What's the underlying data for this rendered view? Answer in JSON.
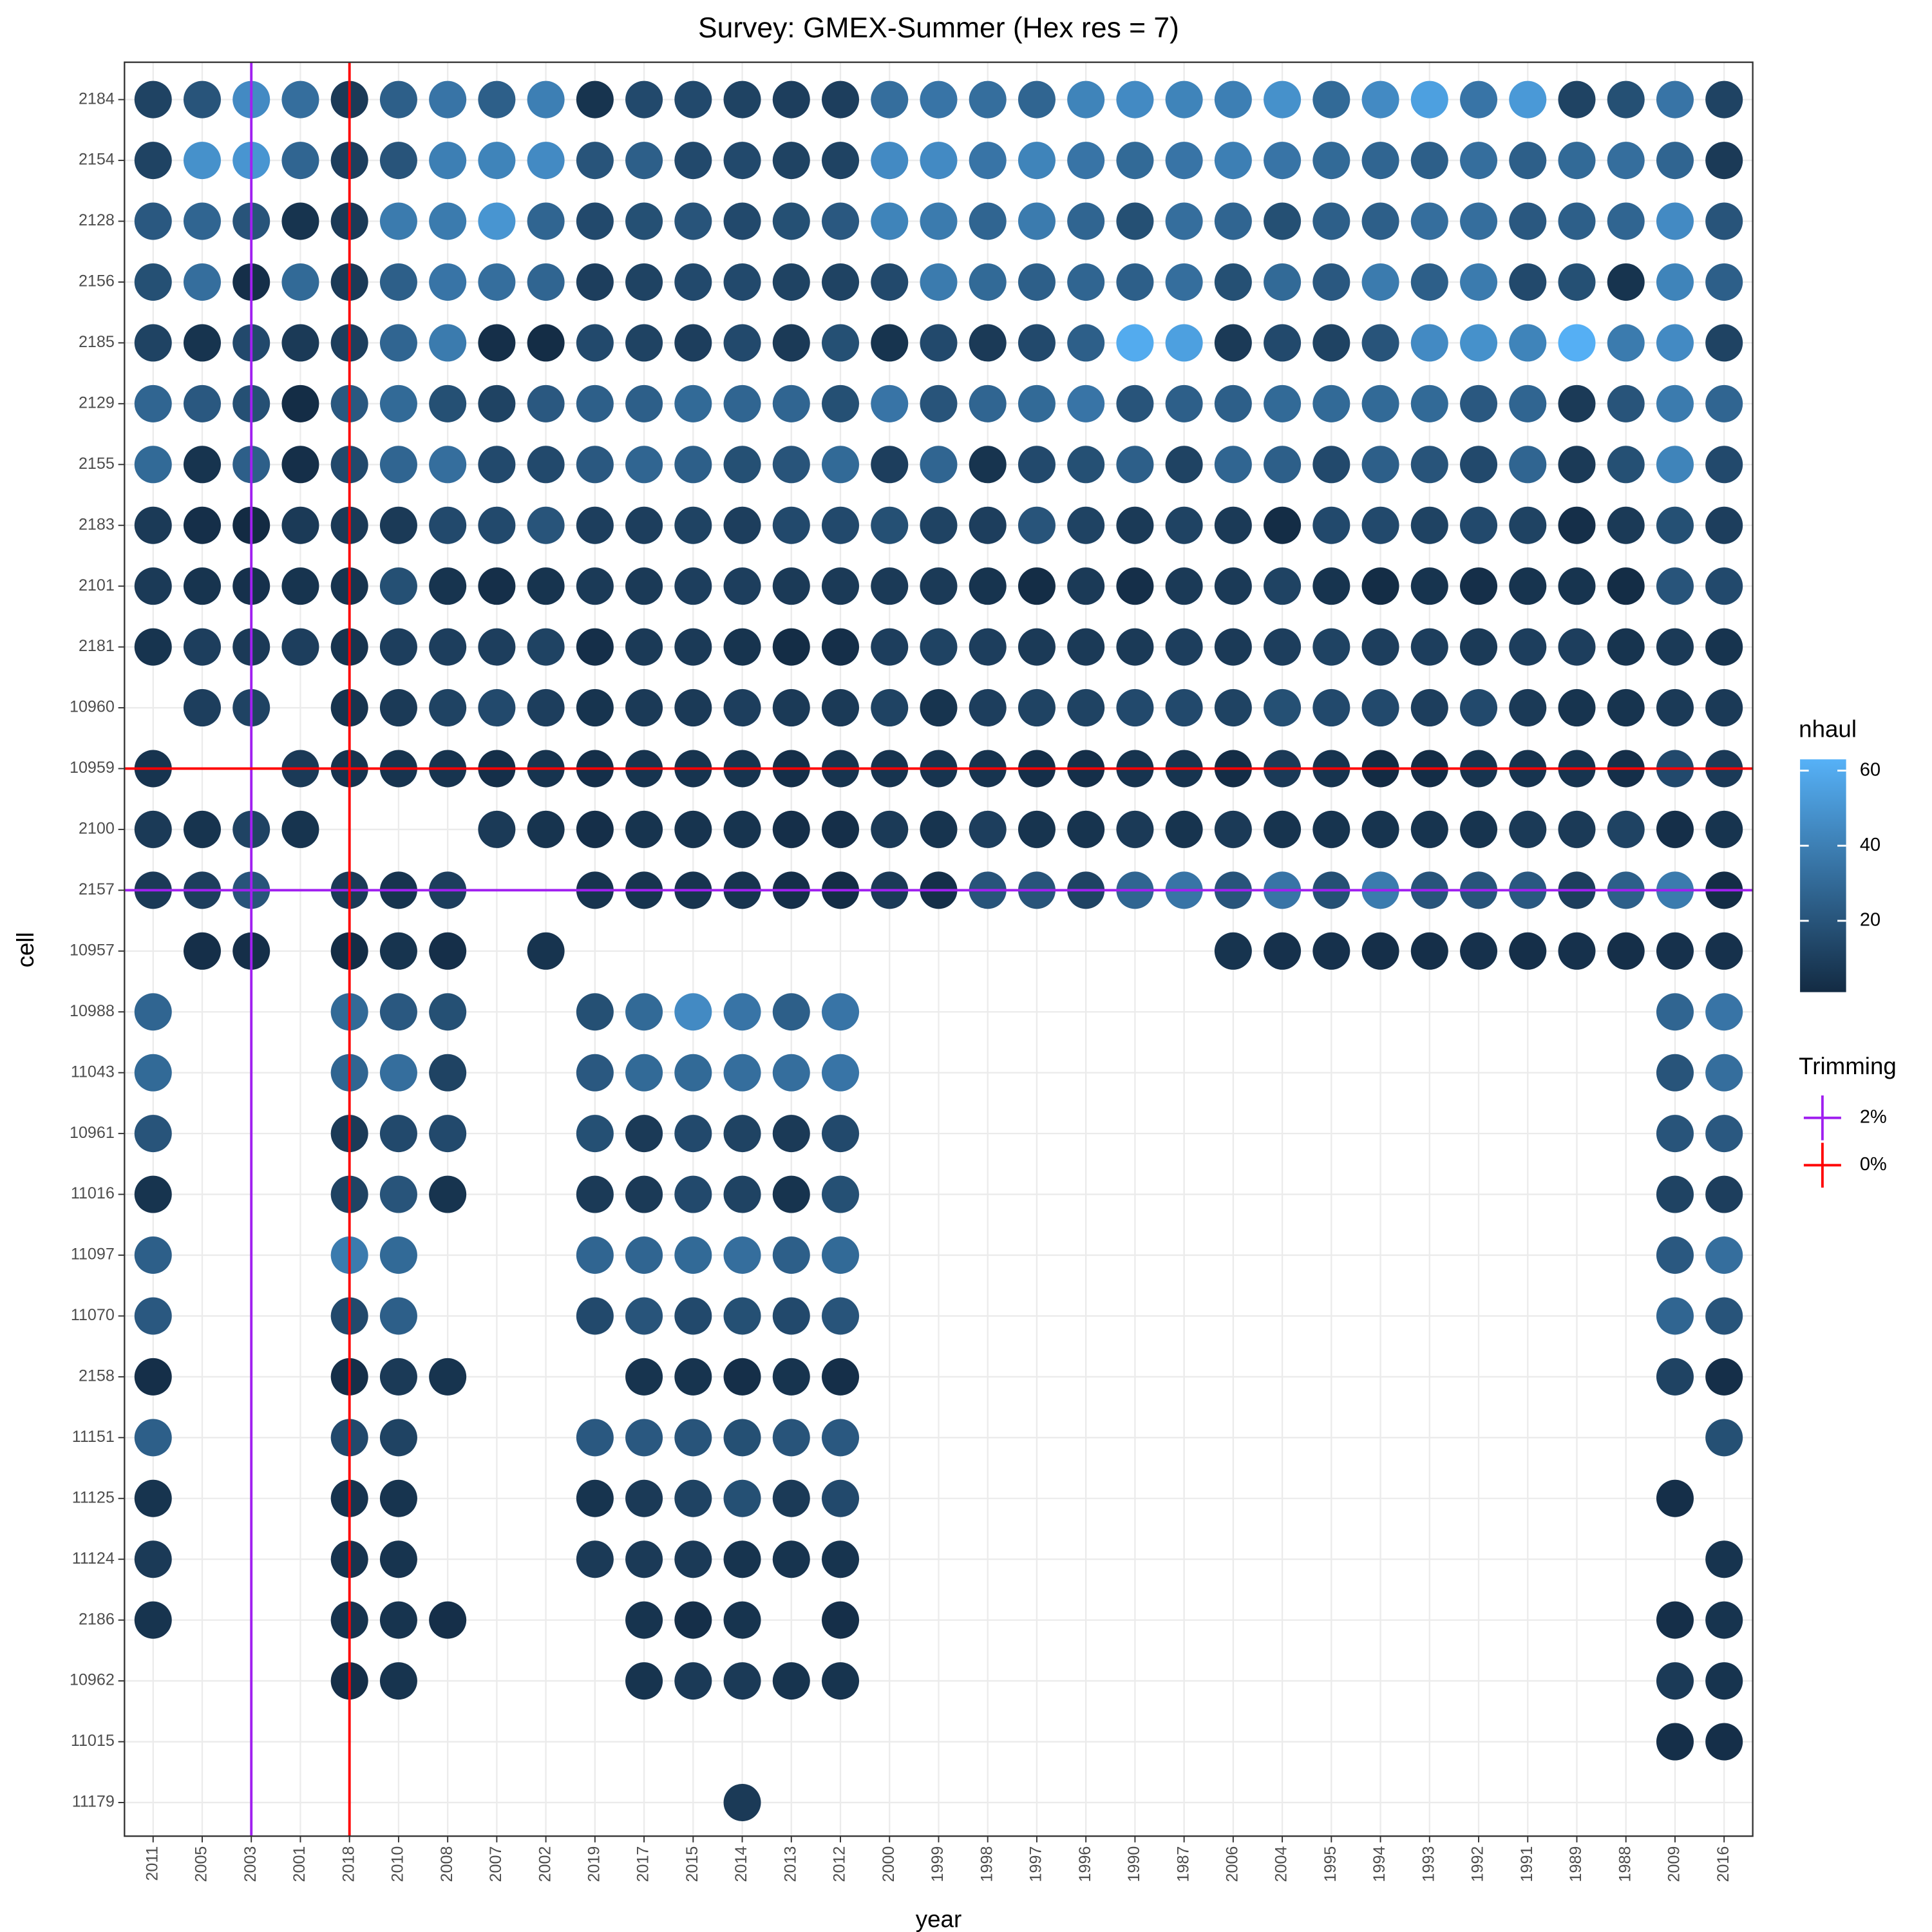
{
  "chart_data": {
    "type": "dotgrid",
    "title": "Survey: GMEX-Summer (Hex res = 7)",
    "x_label": "year",
    "y_label": "cell",
    "categories": [
      "2011",
      "2005",
      "2003",
      "2001",
      "2018",
      "2010",
      "2008",
      "2007",
      "2002",
      "2019",
      "2017",
      "2015",
      "2014",
      "2013",
      "2012",
      "2000",
      "1999",
      "1998",
      "1997",
      "1996",
      "1990",
      "1987",
      "2006",
      "2004",
      "1995",
      "1994",
      "1993",
      "1992",
      "1991",
      "1989",
      "1988",
      "2009",
      "2016"
    ],
    "y_categories": [
      "2184",
      "2154",
      "2128",
      "2156",
      "2185",
      "2129",
      "2155",
      "2183",
      "2101",
      "2181",
      "10960",
      "10959",
      "2100",
      "2157",
      "10957",
      "10988",
      "11043",
      "10961",
      "11016",
      "11097",
      "11070",
      "2158",
      "11151",
      "11125",
      "11124",
      "2186",
      "10962",
      "11015",
      "11179"
    ],
    "values": [
      [
        12,
        20,
        45,
        32,
        8,
        25,
        35,
        25,
        40,
        5,
        15,
        15,
        12,
        10,
        10,
        32,
        35,
        32,
        28,
        42,
        45,
        42,
        40,
        48,
        30,
        45,
        55,
        35,
        52,
        12,
        18,
        35,
        12
      ],
      [
        12,
        48,
        50,
        28,
        10,
        20,
        40,
        42,
        45,
        20,
        25,
        15,
        15,
        12,
        12,
        45,
        45,
        35,
        42,
        35,
        30,
        35,
        40,
        35,
        30,
        28,
        25,
        32,
        25,
        30,
        32,
        28,
        8
      ],
      [
        22,
        28,
        20,
        5,
        8,
        38,
        38,
        50,
        28,
        15,
        18,
        20,
        15,
        18,
        22,
        42,
        38,
        28,
        38,
        28,
        18,
        32,
        28,
        18,
        25,
        25,
        32,
        32,
        22,
        25,
        28,
        45,
        20
      ],
      [
        18,
        32,
        3,
        30,
        8,
        25,
        35,
        32,
        28,
        10,
        12,
        15,
        15,
        12,
        12,
        15,
        38,
        30,
        25,
        28,
        25,
        32,
        18,
        30,
        22,
        38,
        25,
        38,
        15,
        18,
        5,
        42,
        25
      ],
      [
        12,
        5,
        15,
        8,
        10,
        28,
        38,
        3,
        2,
        15,
        12,
        10,
        15,
        8,
        18,
        5,
        15,
        8,
        15,
        25,
        60,
        55,
        8,
        15,
        12,
        20,
        45,
        48,
        42,
        62,
        38,
        45,
        12
      ],
      [
        28,
        22,
        18,
        2,
        22,
        30,
        18,
        12,
        22,
        25,
        25,
        30,
        28,
        28,
        18,
        35,
        20,
        28,
        30,
        35,
        20,
        25,
        25,
        30,
        30,
        30,
        30,
        22,
        28,
        8,
        20,
        38,
        28
      ],
      [
        30,
        5,
        25,
        3,
        15,
        28,
        32,
        15,
        15,
        22,
        28,
        25,
        18,
        20,
        30,
        10,
        28,
        5,
        15,
        18,
        25,
        12,
        28,
        25,
        15,
        25,
        20,
        15,
        28,
        8,
        18,
        42,
        15
      ],
      [
        8,
        3,
        1,
        8,
        8,
        8,
        15,
        15,
        20,
        10,
        10,
        12,
        10,
        15,
        15,
        18,
        12,
        10,
        20,
        12,
        8,
        12,
        8,
        2,
        15,
        15,
        12,
        15,
        12,
        3,
        8,
        18,
        10
      ],
      [
        8,
        5,
        4,
        5,
        5,
        18,
        5,
        3,
        5,
        8,
        8,
        10,
        10,
        8,
        8,
        8,
        8,
        5,
        2,
        8,
        3,
        8,
        8,
        12,
        5,
        2,
        5,
        3,
        5,
        5,
        2,
        20,
        15
      ],
      [
        5,
        10,
        8,
        10,
        5,
        10,
        10,
        10,
        12,
        3,
        8,
        8,
        5,
        2,
        3,
        10,
        12,
        10,
        8,
        8,
        8,
        10,
        8,
        10,
        12,
        10,
        10,
        8,
        10,
        10,
        5,
        8,
        5
      ],
      [
        null,
        10,
        12,
        null,
        5,
        8,
        12,
        15,
        10,
        5,
        8,
        8,
        10,
        8,
        8,
        12,
        5,
        10,
        12,
        12,
        15,
        15,
        12,
        18,
        15,
        15,
        10,
        15,
        8,
        5,
        5,
        8,
        8
      ],
      [
        5,
        null,
        null,
        8,
        5,
        5,
        5,
        3,
        5,
        3,
        5,
        5,
        5,
        3,
        5,
        5,
        5,
        5,
        3,
        3,
        5,
        5,
        2,
        8,
        5,
        1,
        2,
        5,
        5,
        5,
        3,
        15,
        8
      ],
      [
        8,
        5,
        12,
        5,
        null,
        null,
        null,
        8,
        5,
        3,
        5,
        5,
        5,
        3,
        3,
        8,
        5,
        10,
        5,
        5,
        8,
        5,
        8,
        5,
        5,
        5,
        5,
        5,
        8,
        8,
        12,
        3,
        5
      ],
      [
        8,
        10,
        20,
        null,
        8,
        5,
        10,
        null,
        null,
        5,
        5,
        5,
        5,
        3,
        2,
        8,
        3,
        20,
        20,
        12,
        28,
        35,
        20,
        35,
        18,
        38,
        20,
        20,
        22,
        10,
        25,
        38,
        2
      ],
      [
        null,
        3,
        3,
        null,
        2,
        5,
        3,
        null,
        5,
        null,
        null,
        null,
        null,
        null,
        null,
        null,
        null,
        null,
        null,
        null,
        null,
        null,
        5,
        4,
        4,
        3,
        3,
        4,
        3,
        4,
        3,
        4,
        4
      ],
      [
        28,
        null,
        null,
        null,
        30,
        22,
        18,
        null,
        null,
        18,
        30,
        45,
        35,
        25,
        35,
        null,
        null,
        null,
        null,
        null,
        null,
        null,
        null,
        null,
        null,
        null,
        null,
        null,
        null,
        null,
        null,
        28,
        35
      ],
      [
        30,
        null,
        null,
        null,
        28,
        32,
        12,
        null,
        null,
        22,
        30,
        30,
        32,
        32,
        35,
        null,
        null,
        null,
        null,
        null,
        null,
        null,
        null,
        null,
        null,
        null,
        null,
        null,
        null,
        null,
        null,
        20,
        32
      ],
      [
        20,
        null,
        null,
        null,
        8,
        15,
        15,
        null,
        null,
        18,
        8,
        15,
        12,
        8,
        15,
        null,
        null,
        null,
        null,
        null,
        null,
        null,
        null,
        null,
        null,
        null,
        null,
        null,
        null,
        null,
        null,
        20,
        22
      ],
      [
        5,
        null,
        null,
        null,
        12,
        20,
        5,
        null,
        null,
        8,
        8,
        15,
        12,
        5,
        18,
        null,
        null,
        null,
        null,
        null,
        null,
        null,
        null,
        null,
        null,
        null,
        null,
        null,
        null,
        null,
        null,
        12,
        10
      ],
      [
        25,
        null,
        null,
        null,
        38,
        30,
        null,
        null,
        null,
        28,
        28,
        30,
        32,
        25,
        30,
        null,
        null,
        null,
        null,
        null,
        null,
        null,
        null,
        null,
        null,
        null,
        null,
        null,
        null,
        null,
        null,
        22,
        32
      ],
      [
        22,
        null,
        null,
        null,
        15,
        25,
        null,
        null,
        null,
        15,
        20,
        15,
        18,
        15,
        20,
        null,
        null,
        null,
        null,
        null,
        null,
        null,
        null,
        null,
        null,
        null,
        null,
        null,
        null,
        null,
        null,
        28,
        20
      ],
      [
        3,
        null,
        null,
        null,
        3,
        8,
        5,
        null,
        null,
        null,
        5,
        5,
        3,
        5,
        3,
        null,
        null,
        null,
        null,
        null,
        null,
        null,
        null,
        null,
        null,
        null,
        null,
        null,
        null,
        null,
        null,
        12,
        3
      ],
      [
        25,
        null,
        null,
        null,
        15,
        12,
        null,
        null,
        null,
        22,
        22,
        20,
        18,
        20,
        22,
        null,
        null,
        null,
        null,
        null,
        null,
        null,
        null,
        null,
        null,
        null,
        null,
        null,
        null,
        null,
        null,
        null,
        18
      ],
      [
        5,
        null,
        null,
        null,
        5,
        5,
        null,
        null,
        null,
        5,
        8,
        12,
        18,
        8,
        15,
        null,
        null,
        null,
        null,
        null,
        null,
        null,
        null,
        null,
        null,
        null,
        null,
        null,
        null,
        null,
        null,
        3,
        null
      ],
      [
        8,
        null,
        null,
        null,
        5,
        5,
        null,
        null,
        null,
        8,
        8,
        8,
        5,
        5,
        5,
        null,
        null,
        null,
        null,
        null,
        null,
        null,
        null,
        null,
        null,
        null,
        null,
        null,
        null,
        null,
        null,
        null,
        5
      ],
      [
        5,
        null,
        null,
        null,
        5,
        5,
        3,
        null,
        null,
        null,
        5,
        3,
        5,
        null,
        3,
        null,
        null,
        null,
        null,
        null,
        null,
        null,
        null,
        null,
        null,
        null,
        null,
        null,
        null,
        null,
        null,
        3,
        5
      ],
      [
        null,
        null,
        null,
        null,
        3,
        5,
        null,
        null,
        null,
        null,
        5,
        8,
        8,
        5,
        5,
        null,
        null,
        null,
        null,
        null,
        null,
        null,
        null,
        null,
        null,
        null,
        null,
        null,
        null,
        null,
        null,
        8,
        5
      ],
      [
        null,
        null,
        null,
        null,
        null,
        null,
        null,
        null,
        null,
        null,
        null,
        null,
        null,
        null,
        null,
        null,
        null,
        null,
        null,
        null,
        null,
        null,
        null,
        null,
        null,
        null,
        null,
        null,
        null,
        null,
        null,
        3,
        3
      ],
      [
        null,
        null,
        null,
        null,
        null,
        null,
        null,
        null,
        null,
        null,
        null,
        null,
        8,
        null,
        null,
        null,
        null,
        null,
        null,
        null,
        null,
        null,
        null,
        null,
        null,
        null,
        null,
        null,
        null,
        null,
        null,
        null,
        null
      ]
    ],
    "color_label": "nhaul",
    "clim": [
      1,
      63
    ],
    "cticks": [
      20,
      40,
      60
    ],
    "low_color": "#132B43",
    "high_color": "#56B1F7",
    "trimming_label": "Trimming",
    "trimming": [
      {
        "name": "2%",
        "color": "#a020f0",
        "x": "2003",
        "y": "2157"
      },
      {
        "name": "0%",
        "color": "#ff0000",
        "x": "2018",
        "y": "10959"
      }
    ],
    "grid": true
  }
}
